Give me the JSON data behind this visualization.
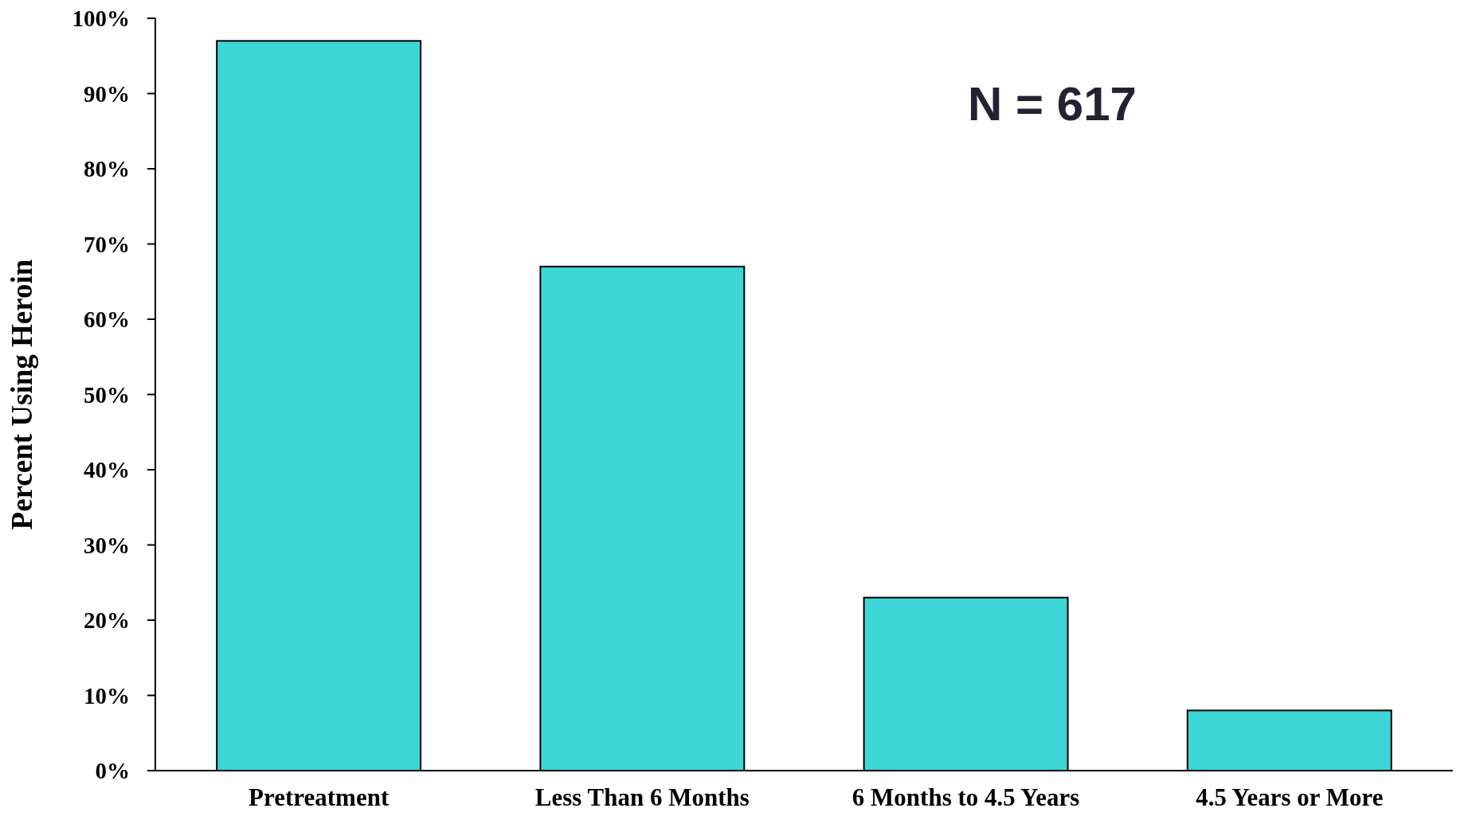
{
  "chart_data": {
    "type": "bar",
    "ylabel": "Percent Using Heroin",
    "categories": [
      "Pretreatment",
      "Less Than 6 Months",
      "6 Months to 4.5 Years",
      "4.5 Years or More"
    ],
    "values": [
      97,
      67,
      23,
      8
    ],
    "color": "#3dd6d6",
    "ylim": [
      0,
      100
    ],
    "yticks": [
      {
        "value": 0,
        "label": "0%"
      },
      {
        "value": 10,
        "label": "10%"
      },
      {
        "value": 20,
        "label": "20%"
      },
      {
        "value": 30,
        "label": "30%"
      },
      {
        "value": 40,
        "label": "40%"
      },
      {
        "value": 50,
        "label": "50%"
      },
      {
        "value": 60,
        "label": "60%"
      },
      {
        "value": 70,
        "label": "70%"
      },
      {
        "value": 80,
        "label": "80%"
      },
      {
        "value": 90,
        "label": "90%"
      },
      {
        "value": 100,
        "label": "100%"
      }
    ],
    "annotations": [
      "N = 617"
    ]
  }
}
